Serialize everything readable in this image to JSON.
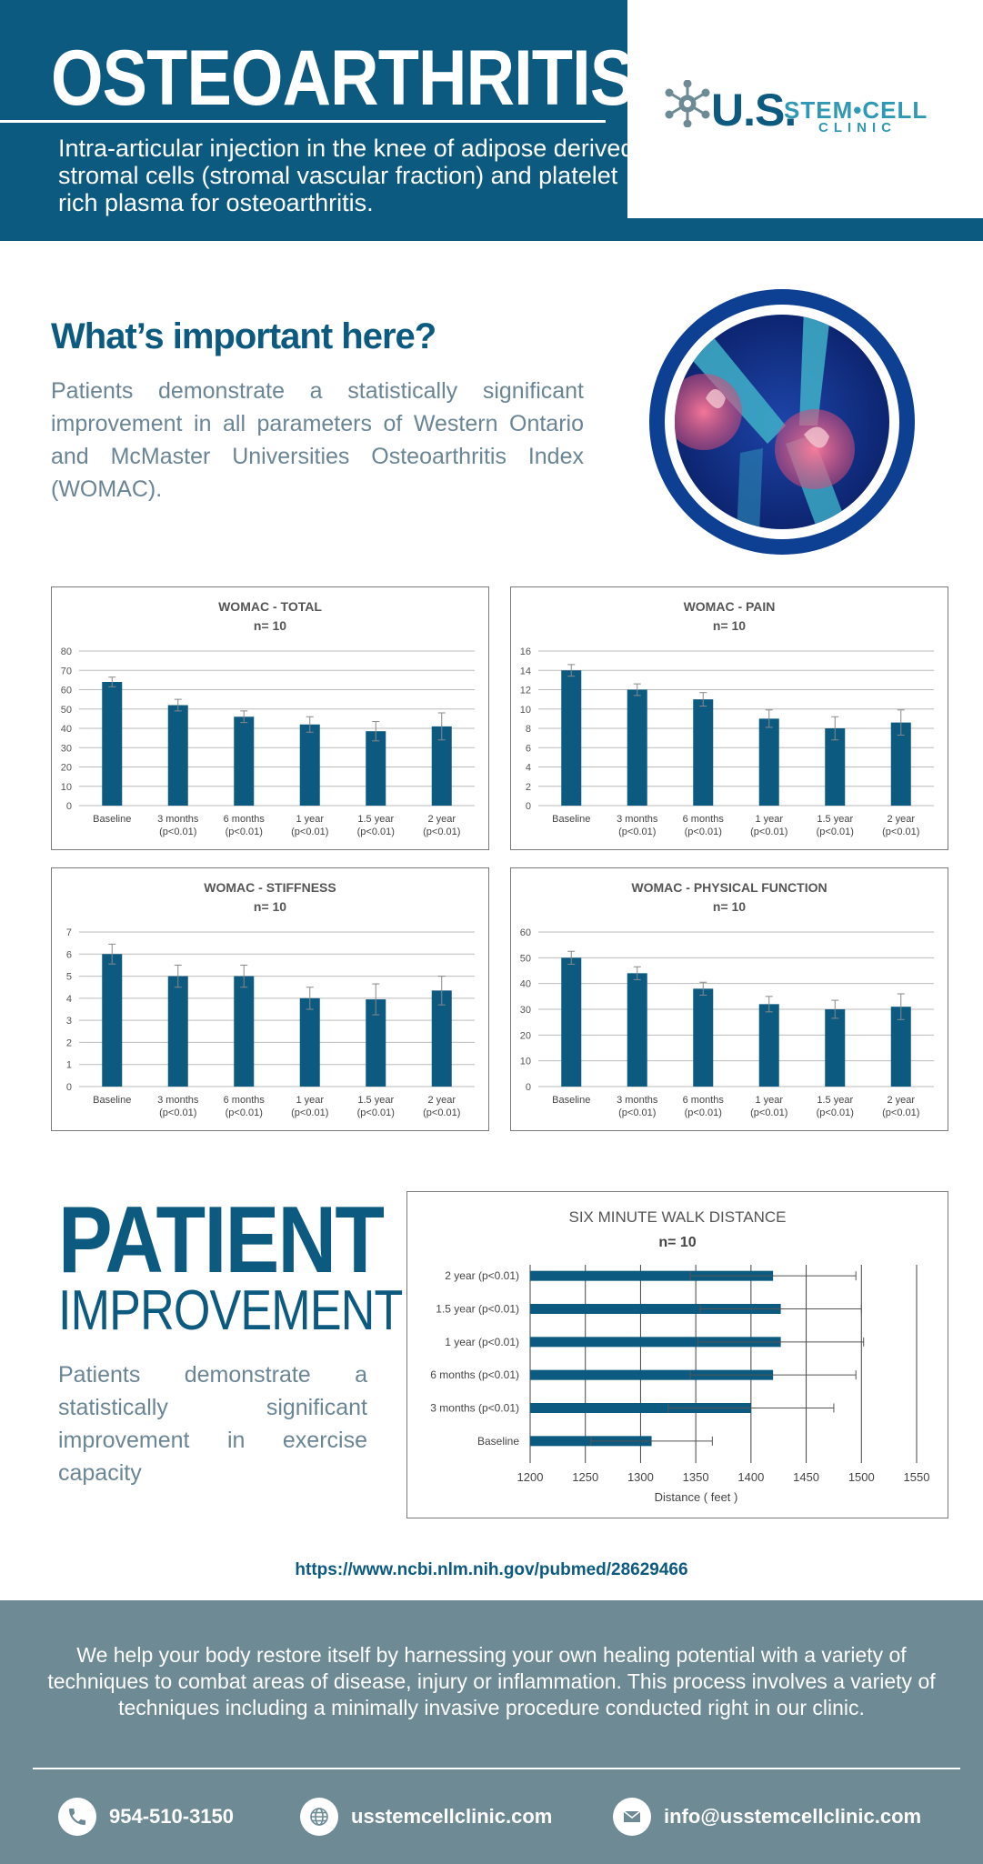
{
  "header": {
    "title": "OSTEOARTHRITIS",
    "subtitle": "Intra-articular injection in the knee of adipose derived stromal cells (stromal vascular fraction) and platelet rich plasma for osteoarthritis.",
    "logo": {
      "us": "U.S.",
      "stem_cell": "STEM•CELL",
      "clinic": "CLINIC"
    }
  },
  "important": {
    "heading": "What’s important here?",
    "text": "Patients demonstrate a statistically significant improvement in all parameters of Western Ontario and McMaster Universities Osteoarthritis Index (WOMAC)."
  },
  "chart_data": [
    {
      "type": "bar",
      "title": "WOMAC - TOTAL",
      "subtitle": "n= 10",
      "categories": [
        "Baseline",
        "3 months\n(p<0.01)",
        "6 months\n(p<0.01)",
        "1 year\n(p<0.01)",
        "1.5 year\n(p<0.01)",
        "2 year\n(p<0.01)"
      ],
      "values": [
        64,
        52,
        46,
        42,
        38.5,
        41
      ],
      "errors": [
        2.5,
        3,
        3,
        4,
        5,
        7
      ],
      "ylim": [
        0,
        80
      ],
      "yticks": [
        0,
        10,
        20,
        30,
        40,
        50,
        60,
        70,
        80
      ]
    },
    {
      "type": "bar",
      "title": "WOMAC - PAIN",
      "subtitle": "n= 10",
      "categories": [
        "Baseline",
        "3 months\n(p<0.01)",
        "6 months\n(p<0.01)",
        "1 year\n(p<0.01)",
        "1.5 year\n(p<0.01)",
        "2 year\n(p<0.01)"
      ],
      "values": [
        14,
        12,
        11,
        9,
        8,
        8.6
      ],
      "errors": [
        0.6,
        0.6,
        0.7,
        0.9,
        1.2,
        1.3
      ],
      "ylim": [
        0,
        16
      ],
      "yticks": [
        0,
        2,
        4,
        6,
        8,
        10,
        12,
        14,
        16
      ]
    },
    {
      "type": "bar",
      "title": "WOMAC - STIFFNESS",
      "subtitle": "n= 10",
      "categories": [
        "Baseline",
        "3 months\n(p<0.01)",
        "6 months\n(p<0.01)",
        "1 year\n(p<0.01)",
        "1.5 year\n(p<0.01)",
        "2 year\n(p<0.01)"
      ],
      "values": [
        6,
        5,
        5,
        4,
        3.95,
        4.35
      ],
      "errors": [
        0.45,
        0.5,
        0.5,
        0.5,
        0.7,
        0.65
      ],
      "ylim": [
        0,
        7
      ],
      "yticks": [
        0,
        1,
        2,
        3,
        4,
        5,
        6,
        7
      ]
    },
    {
      "type": "bar",
      "title": "WOMAC - PHYSICAL FUNCTION",
      "subtitle": "n= 10",
      "categories": [
        "Baseline",
        "3 months\n(p<0.01)",
        "6 months\n(p<0.01)",
        "1 year\n(p<0.01)",
        "1.5 year\n(p<0.01)",
        "2 year\n(p<0.01)"
      ],
      "values": [
        50,
        44,
        38,
        32,
        30,
        31
      ],
      "errors": [
        2.5,
        2.5,
        2.5,
        3,
        3.5,
        5
      ],
      "ylim": [
        0,
        60
      ],
      "yticks": [
        0,
        10,
        20,
        30,
        40,
        50,
        60
      ]
    },
    {
      "type": "bar",
      "orientation": "horizontal",
      "title": "SIX MINUTE WALK DISTANCE",
      "subtitle": "n= 10",
      "categories": [
        "2 year (p<0.01)",
        "1.5 year (p<0.01)",
        "1 year (p<0.01)",
        "6 months (p<0.01)",
        "3 months (p<0.01)",
        "Baseline"
      ],
      "values": [
        1420,
        1427,
        1427,
        1420,
        1400,
        1310
      ],
      "errors": [
        75,
        73,
        75,
        75,
        75,
        55
      ],
      "xlim": [
        1200,
        1550
      ],
      "xticks": [
        1200,
        1250,
        1300,
        1350,
        1400,
        1450,
        1500,
        1550
      ],
      "xlabel": "Distance ( feet )"
    }
  ],
  "patient": {
    "title": "PATIENT",
    "subtitle": "IMPROVEMENT",
    "text": "Patients demonstrate a statistically significant improvement in exercise capacity"
  },
  "source": "https://www.ncbi.nlm.nih.gov/pubmed/28629466",
  "footer": {
    "text": "We help your body restore itself by harnessing your own healing potential with a variety of techniques to combat areas of disease, injury or inflammation. This process involves a variety of techniques including a minimally invasive procedure conducted right in our clinic.",
    "phone": "954-510-3150",
    "website": "usstemcellclinic.com",
    "email": "info@usstemcellclinic.com"
  },
  "colors": {
    "primary": "#0d5a80",
    "accent": "#2f98b4",
    "footer": "#6d8a95",
    "bar": "#0d5a80",
    "body_text": "#6b8595"
  }
}
